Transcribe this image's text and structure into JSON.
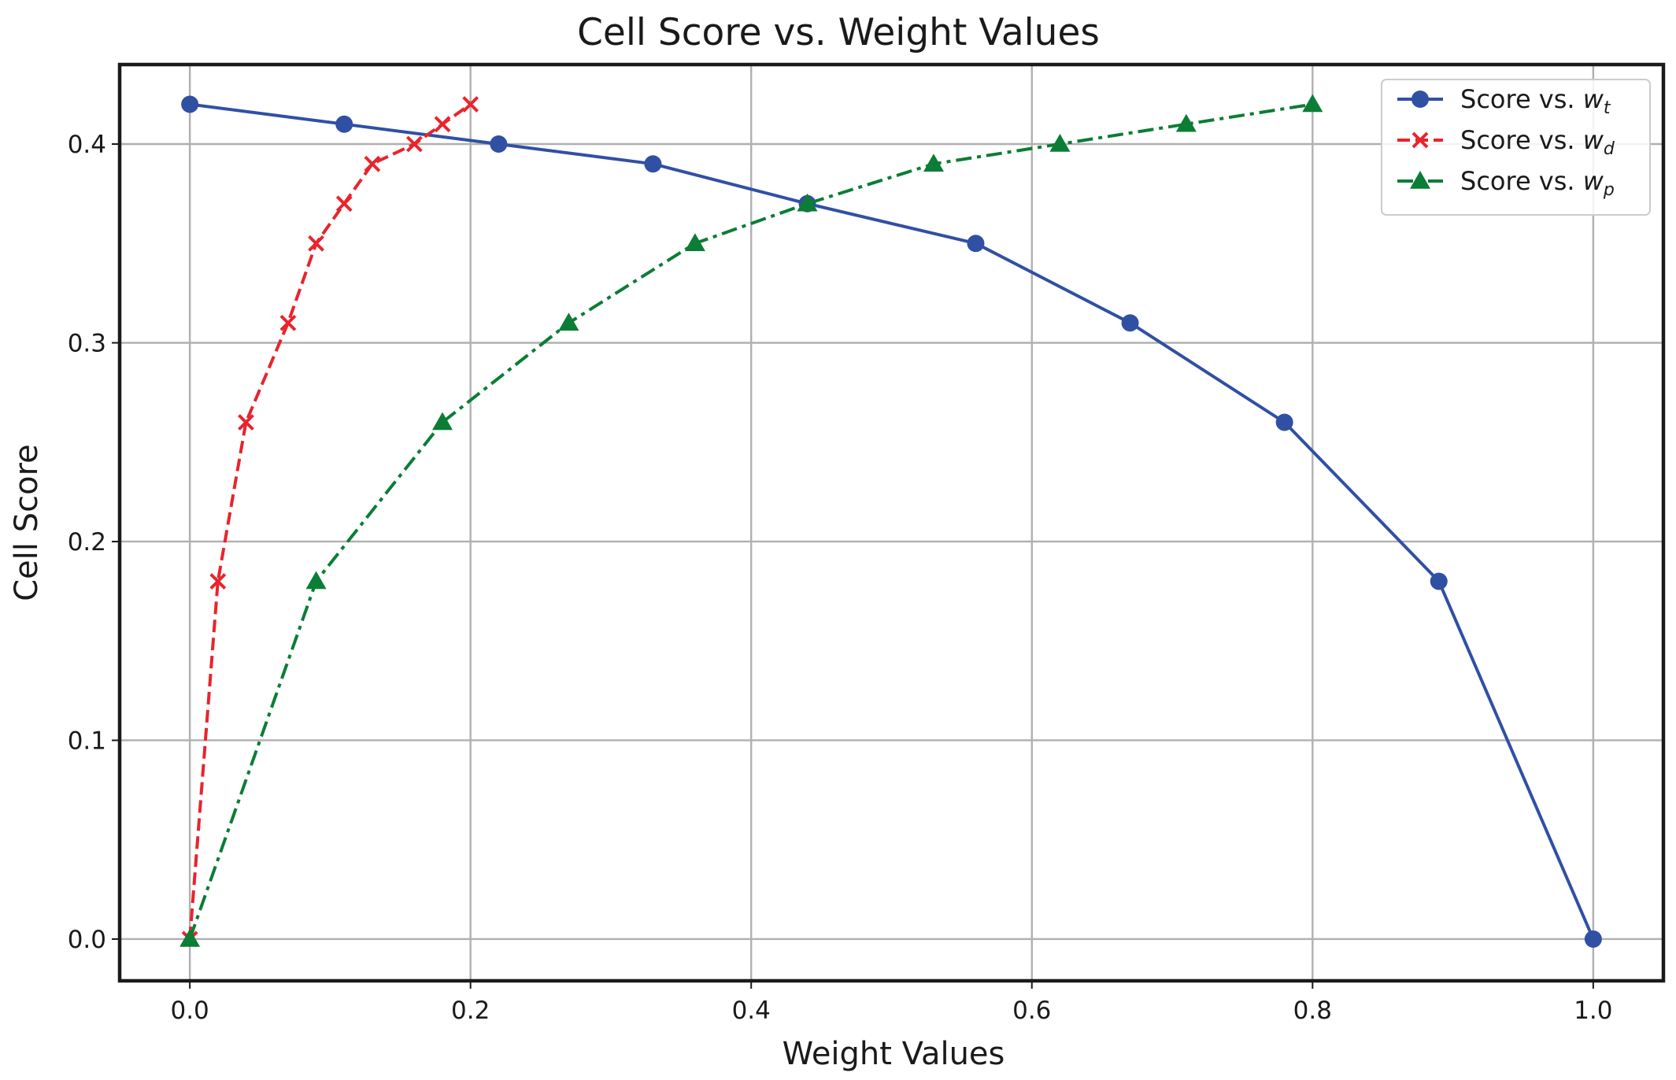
{
  "chart_data": {
    "type": "line",
    "title": "Cell Score vs. Weight Values",
    "xlabel": "Weight Values",
    "ylabel": "Cell Score",
    "xlim": [
      -0.05,
      1.05
    ],
    "ylim": [
      -0.021,
      0.44
    ],
    "xticks": [
      0.0,
      0.2,
      0.4,
      0.6,
      0.8,
      1.0
    ],
    "xtick_labels": [
      "0.0",
      "0.2",
      "0.4",
      "0.6",
      "0.8",
      "1.0"
    ],
    "yticks": [
      0.0,
      0.1,
      0.2,
      0.3,
      0.4
    ],
    "ytick_labels": [
      "0.0",
      "0.1",
      "0.2",
      "0.3",
      "0.4"
    ],
    "grid": true,
    "legend_position": "top-right",
    "series": [
      {
        "name": "Score vs. w_t",
        "legend_prefix": "Score vs. ",
        "legend_var": "w",
        "legend_sub": "t",
        "color": "#3050a4",
        "linestyle": "solid",
        "marker": "circle",
        "x": [
          0.0,
          0.11,
          0.22,
          0.33,
          0.44,
          0.56,
          0.67,
          0.78,
          0.89,
          1.0
        ],
        "y": [
          0.42,
          0.41,
          0.4,
          0.39,
          0.37,
          0.35,
          0.31,
          0.26,
          0.18,
          0.0
        ]
      },
      {
        "name": "Score vs. w_d",
        "legend_prefix": "Score vs. ",
        "legend_var": "w",
        "legend_sub": "d",
        "color": "#e8242c",
        "linestyle": "dashed",
        "marker": "x",
        "x": [
          0.0,
          0.02,
          0.04,
          0.07,
          0.09,
          0.11,
          0.13,
          0.16,
          0.18,
          0.2
        ],
        "y": [
          0.0,
          0.18,
          0.26,
          0.31,
          0.35,
          0.37,
          0.39,
          0.4,
          0.41,
          0.42
        ]
      },
      {
        "name": "Score vs. w_p",
        "legend_prefix": "Score vs. ",
        "legend_var": "w",
        "legend_sub": "p",
        "color": "#0b7d35",
        "linestyle": "dashdot",
        "marker": "triangle",
        "x": [
          0.0,
          0.09,
          0.18,
          0.27,
          0.36,
          0.44,
          0.53,
          0.62,
          0.71,
          0.8
        ],
        "y": [
          0.0,
          0.18,
          0.26,
          0.31,
          0.35,
          0.37,
          0.39,
          0.4,
          0.41,
          0.42
        ]
      }
    ]
  }
}
